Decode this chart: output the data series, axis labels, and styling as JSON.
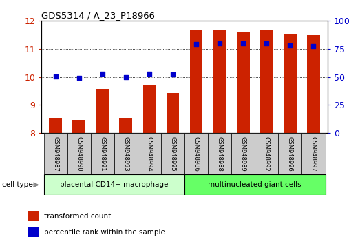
{
  "title": "GDS5314 / A_23_P18966",
  "samples": [
    "GSM948987",
    "GSM948990",
    "GSM948991",
    "GSM948993",
    "GSM948994",
    "GSM948995",
    "GSM948986",
    "GSM948988",
    "GSM948989",
    "GSM948992",
    "GSM948996",
    "GSM948997"
  ],
  "transformed_count": [
    8.55,
    8.47,
    9.57,
    8.53,
    9.72,
    9.42,
    11.65,
    11.65,
    11.6,
    11.68,
    11.5,
    11.48
  ],
  "percentile_rank": [
    50.5,
    49.0,
    52.5,
    50.0,
    53.0,
    52.0,
    79.0,
    79.5,
    79.5,
    80.0,
    78.0,
    77.5
  ],
  "group1_label": "placental CD14+ macrophage",
  "group2_label": "multinucleated giant cells",
  "group1_count": 6,
  "group2_count": 6,
  "ylim_left": [
    8,
    12
  ],
  "ylim_right": [
    0,
    100
  ],
  "yticks_left": [
    8,
    9,
    10,
    11,
    12
  ],
  "yticks_right": [
    0,
    25,
    50,
    75,
    100
  ],
  "bar_color": "#cc2200",
  "dot_color": "#0000cc",
  "group1_bg_light": "#ccffcc",
  "group2_bg_bright": "#66ff66",
  "sample_bg": "#cccccc",
  "legend_bar_label": "transformed count",
  "legend_dot_label": "percentile rank within the sample",
  "cell_type_label": "cell type"
}
